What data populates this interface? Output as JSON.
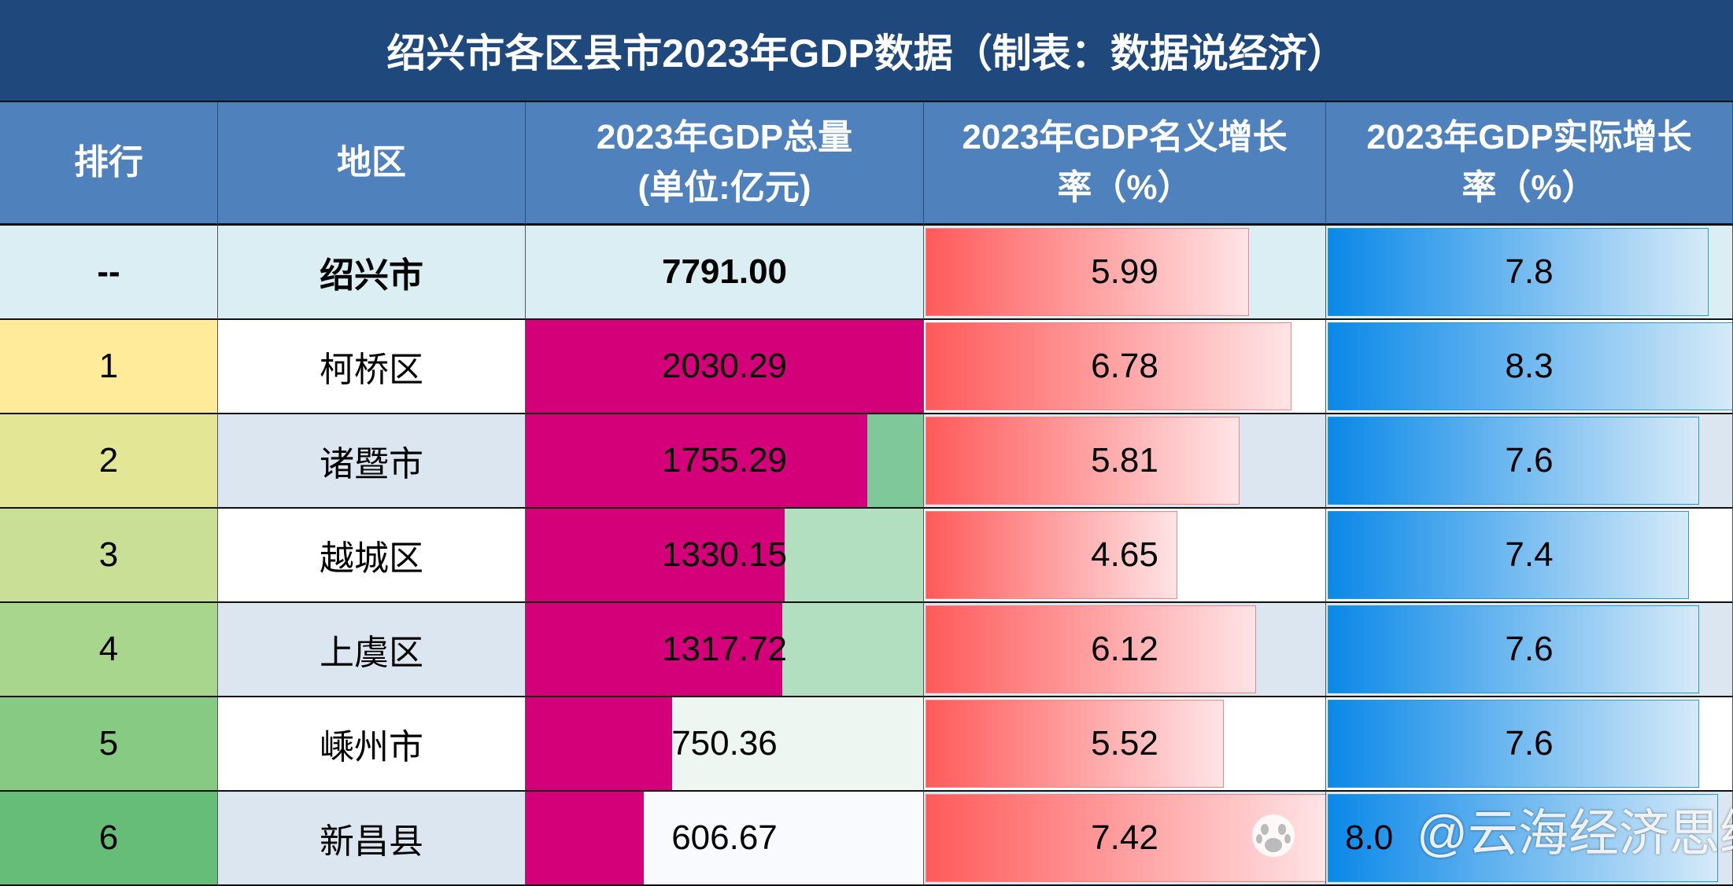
{
  "title": "绍兴市各区县市2023年GDP数据（制表：数据说经济）",
  "headers": [
    {
      "l1": "排行",
      "l2": ""
    },
    {
      "l1": "地区",
      "l2": ""
    },
    {
      "l1": "2023年GDP总量",
      "l2": "(单位:亿元)"
    },
    {
      "l1": "2023年GDP名义增长",
      "l2": "率（%）"
    },
    {
      "l1": "2023年GDP实际增长",
      "l2": "率（%）"
    }
  ],
  "rows": [
    {
      "rank": "--",
      "region": "绍兴市",
      "gdp": "7791.00",
      "nominal": "5.99",
      "real": "7.8",
      "bold": true
    },
    {
      "rank": "1",
      "region": "柯桥区",
      "gdp": "2030.29",
      "nominal": "6.78",
      "real": "8.3"
    },
    {
      "rank": "2",
      "region": "诸暨市",
      "gdp": "1755.29",
      "nominal": "5.81",
      "real": "7.6"
    },
    {
      "rank": "3",
      "region": "越城区",
      "gdp": "1330.15",
      "nominal": "4.65",
      "real": "7.4"
    },
    {
      "rank": "4",
      "region": "上虞区",
      "gdp": "1317.72",
      "nominal": "6.12",
      "real": "7.6"
    },
    {
      "rank": "5",
      "region": "嵊州市",
      "gdp": "750.36",
      "nominal": "5.52",
      "real": "7.6"
    },
    {
      "rank": "6",
      "region": "新昌县",
      "gdp": "606.67",
      "nominal": "7.42",
      "real": "8.0"
    }
  ],
  "colors": {
    "title_bg": "#1F497D",
    "header_bg": "#4F81BD",
    "gdp_bar": "#D4007A",
    "nominal_bar": "#FF5A5A",
    "real_bar": "#0A88E8",
    "rank_scale": [
      "#DAEEF3",
      "#FFEB99",
      "#E3E695",
      "#C9DF95",
      "#A8D68C",
      "#86CA84",
      "#66BD78"
    ],
    "gdp_bg_scale": [
      "#DAEEF3",
      "#D4007A",
      "#7FC89A",
      "#B2DFC0",
      "#B2DFC0",
      "#EEF6F2",
      "#F9FAFD"
    ]
  },
  "watermark": "@云海经济思维"
}
